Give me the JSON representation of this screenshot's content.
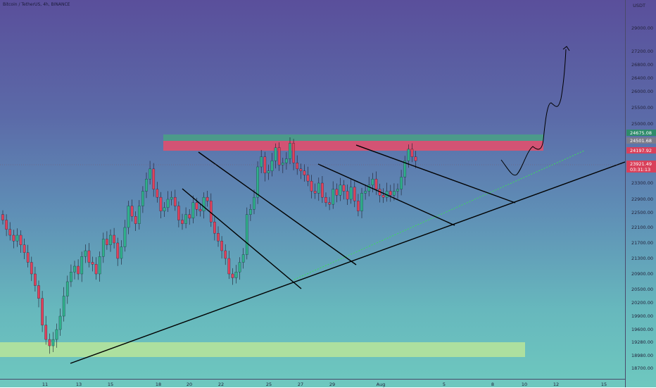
{
  "title": "Bitcoin / TetherUS, 4h, BINANCE",
  "currency": "USDT",
  "chart_data": {
    "type": "candlestick",
    "symbol": "Bitcoin / TetherUS",
    "interval": "4h",
    "exchange": "BINANCE",
    "y_ticks": [
      29000,
      27200,
      26800,
      26400,
      26000,
      25500,
      25000,
      24100,
      23300,
      22900,
      22500,
      22100,
      21700,
      21300,
      20900,
      20500,
      20200,
      19900,
      19600,
      19280,
      18980,
      18700
    ],
    "x_ticks": [
      "11",
      "13",
      "15",
      "18",
      "20",
      "22",
      "25",
      "27",
      "29",
      "Aug",
      "5",
      "8",
      "10",
      "12",
      "15"
    ],
    "price_tags": [
      {
        "value": "24675.08",
        "color": "#2e8b6a"
      },
      {
        "value": "24501.68",
        "color": "#7c7c8a"
      },
      {
        "value": "24197.92",
        "color": "#d9405a"
      },
      {
        "value": "23921.49",
        "color": "#d9405a"
      },
      {
        "value": "03:31:13",
        "color": "#d9405a"
      }
    ],
    "zones": [
      {
        "name": "resistance-green",
        "color": "#4a9e86"
      },
      {
        "name": "resistance-red",
        "color": "#e0506e"
      },
      {
        "name": "support-yellow",
        "color": "#b9e59a"
      }
    ],
    "closes": [
      22300,
      22050,
      21900,
      21750,
      21900,
      21650,
      21450,
      21200,
      20900,
      20600,
      20300,
      19700,
      19350,
      19200,
      19350,
      19600,
      19900,
      20350,
      20700,
      20950,
      21100,
      20900,
      21350,
      21500,
      21200,
      21150,
      20900,
      21350,
      21800,
      21650,
      21900,
      21700,
      21300,
      21600,
      22100,
      22700,
      22400,
      22200,
      22700,
      23100,
      23400,
      23650,
      23150,
      22950,
      22550,
      22650,
      22900,
      22950,
      22700,
      22300,
      22200,
      22450,
      22350,
      22800,
      22600,
      22550,
      22950,
      22850,
      22250,
      21950,
      21750,
      21500,
      21300,
      20900,
      20800,
      20950,
      21200,
      21400,
      22450,
      22600,
      22950,
      23700,
      23950,
      23550,
      23600,
      23850,
      24200,
      23750,
      23800,
      23900,
      24350,
      23800,
      23650,
      23600,
      23500,
      23350,
      23100,
      23050,
      23300,
      22950,
      22800,
      22750,
      23150,
      23000,
      23250,
      23100,
      22900,
      23200,
      22850,
      22550,
      23050,
      23100,
      23250,
      23400,
      23150,
      23000,
      22950,
      23100,
      23000,
      23100,
      23150,
      23450,
      23850,
      24150,
      23950,
      23850
    ]
  }
}
